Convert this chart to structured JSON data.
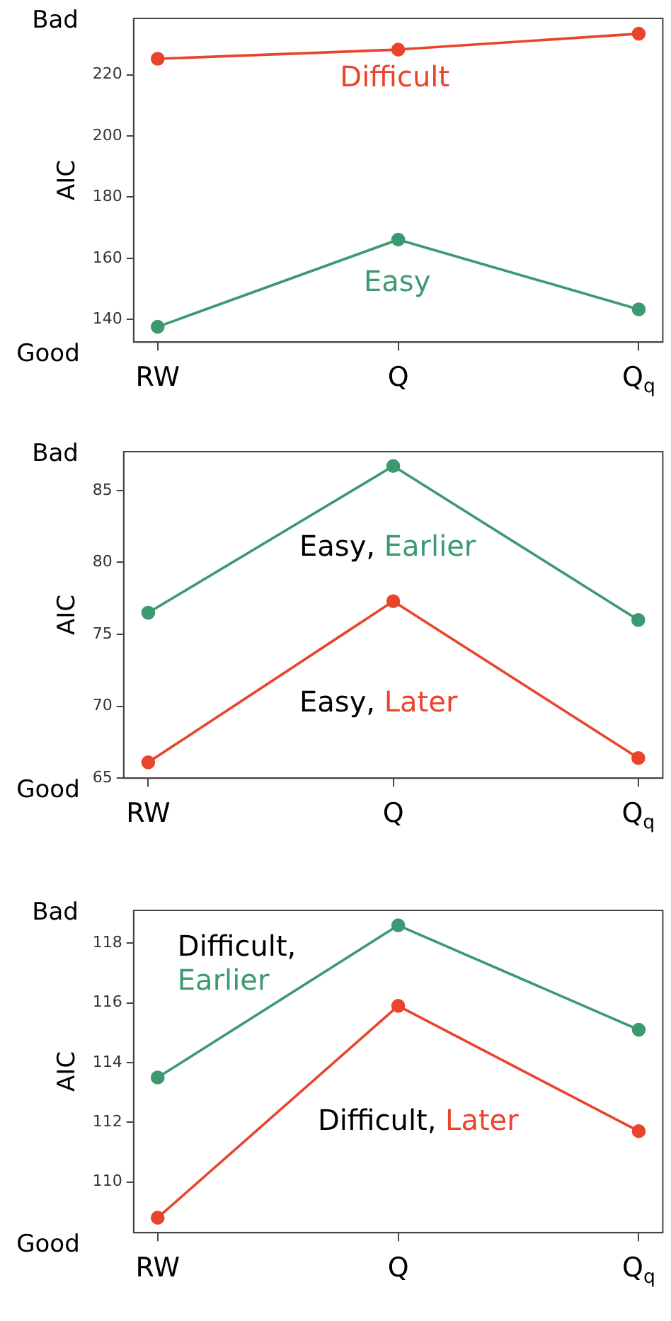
{
  "chart_data": [
    {
      "type": "line",
      "ylabel": "AIC",
      "annotations": [
        "Bad",
        "Good"
      ],
      "categories": [
        "RW",
        "Q",
        "Q$_{q}$"
      ],
      "ylim": [
        132.6,
        238.4
      ],
      "yticks": [
        140,
        160,
        180,
        200,
        220
      ],
      "marker": "circle",
      "grid": false,
      "legend": false,
      "series": [
        {
          "name": "Difficult",
          "color": "#e8452c",
          "values": [
            225.2,
            228.2,
            233.4
          ]
        },
        {
          "name": "Easy",
          "color": "#3d9970",
          "values": [
            137.6,
            166.1,
            143.3
          ]
        }
      ]
    },
    {
      "type": "line",
      "ylabel": "AIC",
      "annotations": [
        "Bad",
        "Good",
        "Easy,",
        "Easy,"
      ],
      "categories": [
        "RW",
        "Q",
        "Q$_{q}$"
      ],
      "ylim": [
        65,
        87.7
      ],
      "yticks": [
        65,
        70,
        75,
        80,
        85
      ],
      "marker": "circle",
      "grid": false,
      "legend": false,
      "series": [
        {
          "name": "Earlier",
          "color": "#3d9970",
          "values": [
            76.5,
            86.7,
            76.0
          ]
        },
        {
          "name": "Later",
          "color": "#e8452c",
          "values": [
            66.1,
            77.3,
            66.4
          ]
        }
      ]
    },
    {
      "type": "line",
      "ylabel": "AIC",
      "annotations": [
        "Bad",
        "Good",
        "Difficult,",
        "Difficult,"
      ],
      "categories": [
        "RW",
        "Q",
        "Q$_{q}$"
      ],
      "ylim": [
        108.3,
        119.1
      ],
      "yticks": [
        110,
        112,
        114,
        116,
        118
      ],
      "marker": "circle",
      "grid": false,
      "legend": false,
      "series": [
        {
          "name": "Earlier",
          "color": "#3d9970",
          "values": [
            113.5,
            118.6,
            115.1
          ]
        },
        {
          "name": "Later",
          "color": "#e8452c",
          "values": [
            108.8,
            115.9,
            111.7
          ]
        }
      ]
    }
  ]
}
